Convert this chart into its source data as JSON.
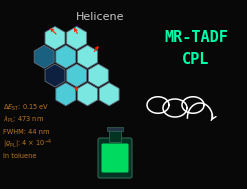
{
  "bg_color": "#080808",
  "title_text": "Helicene",
  "title_color": "#c8c8c8",
  "title_fontsize": 8,
  "mr_tadf_text": "MR-TADF",
  "cpl_text": "CPL",
  "accent_color": "#00ffaa",
  "hex_color_light": "#7ae8e0",
  "hex_color_mid": "#4dccd8",
  "hex_color_dark": "#1a6080",
  "hex_color_darkest": "#0d2040",
  "hex_outline": "#607080",
  "red_color": "#ff2200",
  "white_color": "#ffffff",
  "label_color": "#bb7722",
  "flask_body": "#003322",
  "flask_glow": "#00ee66",
  "flask_edge": "#336655"
}
